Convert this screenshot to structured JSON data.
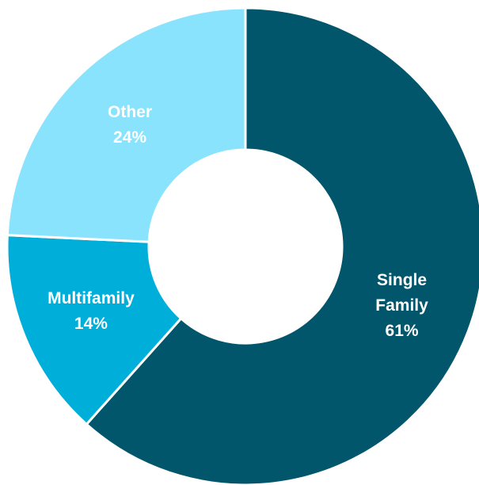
{
  "chart_data": {
    "type": "donut",
    "categories": [
      "Single Family",
      "Multifamily",
      "Other"
    ],
    "values": [
      61,
      14,
      24
    ],
    "value_labels": [
      "61%",
      "14%",
      "24%"
    ],
    "colors": [
      "#02566b",
      "#00afd9",
      "#8ae3fc"
    ]
  }
}
